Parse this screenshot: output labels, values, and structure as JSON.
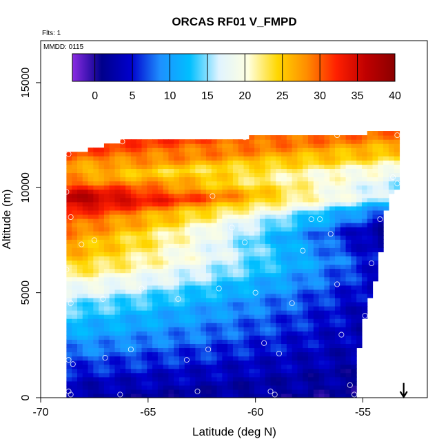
{
  "chart_data": {
    "type": "heatmap",
    "title": "ORCAS RF01 V_FMPD",
    "flights_text": "Flts: 1",
    "date_text": "MMDD: 0115",
    "xlabel": "Latitude (deg N)",
    "ylabel": "Altitude (m)",
    "xlim": [
      -70,
      -52
    ],
    "ylim": [
      0,
      17000
    ],
    "xticks": [
      -70,
      -65,
      -60,
      -55
    ],
    "yticks": [
      0,
      5000,
      10000,
      15000
    ],
    "colorbar": {
      "range": [
        -3,
        40
      ],
      "ticks": [
        0,
        5,
        10,
        15,
        20,
        25,
        30,
        35,
        40
      ],
      "stops": [
        "#8a2be2",
        "#00008b",
        "#0000cd",
        "#1e90ff",
        "#00bfff",
        "#e0f4ff",
        "#ffffe0",
        "#ffd700",
        "#ff8c00",
        "#ff2000",
        "#c00000",
        "#8b0000"
      ]
    },
    "field": {
      "lat_range": [
        -68.8,
        -53.3
      ],
      "alt_range": [
        0,
        12700
      ],
      "upper_edge": [
        {
          "lat": -68.8,
          "alt": 11600
        },
        {
          "lat": -67.3,
          "alt": 11900
        },
        {
          "lat": -66.4,
          "alt": 12200
        },
        {
          "lat": -60.5,
          "alt": 12400
        },
        {
          "lat": -56.0,
          "alt": 12500
        },
        {
          "lat": -53.6,
          "alt": 12700
        },
        {
          "lat": -53.3,
          "alt": 12700
        }
      ],
      "lower_right_edge": [
        {
          "lat": -53.3,
          "alt": 10000
        },
        {
          "lat": -53.7,
          "alt": 9800
        },
        {
          "lat": -54.0,
          "alt": 8700
        },
        {
          "lat": -54.2,
          "alt": 6800
        },
        {
          "lat": -54.5,
          "alt": 5200
        },
        {
          "lat": -54.9,
          "alt": 4000
        },
        {
          "lat": -55.1,
          "alt": 2800
        },
        {
          "lat": -55.3,
          "alt": 1600
        },
        {
          "lat": -55.4,
          "alt": 0
        }
      ],
      "layers": [
        {
          "alt": 0,
          "west": 2,
          "east": 1
        },
        {
          "alt": 2500,
          "west": 9,
          "east": 2
        },
        {
          "alt": 4500,
          "west": 15,
          "east": 2
        },
        {
          "alt": 6500,
          "west": 25,
          "east": 3
        },
        {
          "alt": 7800,
          "west": 28,
          "east": -1
        },
        {
          "alt": 8800,
          "west": 32,
          "east": 5
        },
        {
          "alt": 9500,
          "west": 38,
          "east": 14
        },
        {
          "alt": 10200,
          "west": 30,
          "east": 16
        },
        {
          "alt": 10800,
          "west": 26,
          "east": 19
        },
        {
          "alt": 11500,
          "west": 30,
          "east": 24
        },
        {
          "alt": 12300,
          "west": 32,
          "east": 28
        }
      ]
    },
    "sample_points": [
      {
        "lat": -68.7,
        "alt": 11600
      },
      {
        "lat": -66.2,
        "alt": 12200
      },
      {
        "lat": -60.5,
        "alt": 12400
      },
      {
        "lat": -56.2,
        "alt": 12500
      },
      {
        "lat": -53.4,
        "alt": 12500
      },
      {
        "lat": -68.8,
        "alt": 9800
      },
      {
        "lat": -68.6,
        "alt": 8600
      },
      {
        "lat": -68.1,
        "alt": 7300
      },
      {
        "lat": -67.5,
        "alt": 7500
      },
      {
        "lat": -68.8,
        "alt": 6100
      },
      {
        "lat": -65.3,
        "alt": 5200
      },
      {
        "lat": -63.6,
        "alt": 4700
      },
      {
        "lat": -67.1,
        "alt": 4700
      },
      {
        "lat": -68.6,
        "alt": 4500
      },
      {
        "lat": -68.7,
        "alt": 1800
      },
      {
        "lat": -68.5,
        "alt": 1600
      },
      {
        "lat": -67.0,
        "alt": 1900
      },
      {
        "lat": -65.8,
        "alt": 2300
      },
      {
        "lat": -63.2,
        "alt": 1800
      },
      {
        "lat": -62.2,
        "alt": 2300
      },
      {
        "lat": -68.7,
        "alt": 300
      },
      {
        "lat": -68.6,
        "alt": 150
      },
      {
        "lat": -66.3,
        "alt": 150
      },
      {
        "lat": -62.7,
        "alt": 300
      },
      {
        "lat": -59.3,
        "alt": 300
      },
      {
        "lat": -59.1,
        "alt": 150
      },
      {
        "lat": -55.6,
        "alt": 600
      },
      {
        "lat": -55.4,
        "alt": 150
      },
      {
        "lat": -55.1,
        "alt": 1500
      },
      {
        "lat": -58.9,
        "alt": 2100
      },
      {
        "lat": -59.6,
        "alt": 2600
      },
      {
        "lat": -56.0,
        "alt": 3000
      },
      {
        "lat": -54.9,
        "alt": 3900
      },
      {
        "lat": -58.3,
        "alt": 4500
      },
      {
        "lat": -60.0,
        "alt": 5000
      },
      {
        "lat": -61.7,
        "alt": 5200
      },
      {
        "lat": -54.6,
        "alt": 6400
      },
      {
        "lat": -56.2,
        "alt": 5400
      },
      {
        "lat": -57.8,
        "alt": 7000
      },
      {
        "lat": -60.5,
        "alt": 7400
      },
      {
        "lat": -61.1,
        "alt": 8100
      },
      {
        "lat": -57.4,
        "alt": 8500
      },
      {
        "lat": -57.0,
        "alt": 8500
      },
      {
        "lat": -56.5,
        "alt": 7800
      },
      {
        "lat": -54.2,
        "alt": 8500
      },
      {
        "lat": -53.9,
        "alt": 8500
      },
      {
        "lat": -62.0,
        "alt": 9600
      },
      {
        "lat": -53.6,
        "alt": 10500
      },
      {
        "lat": -53.4,
        "alt": 10200
      }
    ],
    "arrow": {
      "lat": -53.1,
      "alt": 700
    }
  }
}
